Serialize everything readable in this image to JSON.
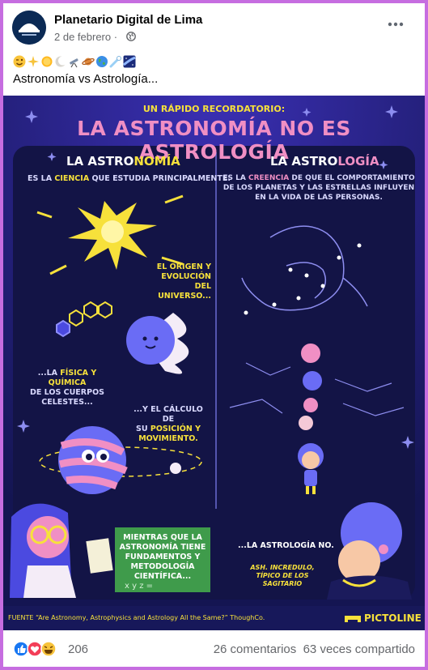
{
  "post": {
    "page_name": "Planetario Digital de Lima",
    "date": "2 de febrero",
    "date_separator": "·",
    "emojis": [
      "wink-face",
      "sparkles",
      "sun",
      "crescent-moon",
      "telescope",
      "ringed-planet",
      "earth-globe",
      "comet",
      "milky-way"
    ],
    "caption": "Astronomía vs Astrología..."
  },
  "infographic": {
    "kicker": "UN RÁPIDO RECORDATORIO:",
    "title": "LA ASTRONOMÍA NO ES ASTROLOGÍA",
    "left": {
      "heading_plain": "LA ASTRO",
      "heading_accent": "NOMÍA",
      "intro_a": "ES LA",
      "intro_accent": "CIENCIA",
      "intro_b": "QUE ESTUDIA PRINCIPALMENTE:",
      "origin_line1": "EL ORIGEN Y",
      "origin_line2": "EVOLUCIÓN DEL",
      "origin_line3": "UNIVERSO...",
      "physics_a": "...LA",
      "physics_accent1": "FÍSICA",
      "physics_b": "Y",
      "physics_accent2": "QUÍMICA",
      "physics_line2": "DE LOS CUERPOS",
      "physics_line3": "CELESTES...",
      "calc_line1": "...Y EL CÁLCULO DE",
      "calc_line2_a": "SU",
      "calc_line2_accent": "POSICIÓN",
      "calc_line2_b": "Y",
      "calc_line3": "MOVIMIENTO."
    },
    "right": {
      "heading_plain": "LA ASTRO",
      "heading_accent": "LOGÍA",
      "intro_a": "ES LA",
      "intro_accent": "CREENCIA",
      "intro_b": "DE QUE EL COMPORTAMIENTO",
      "intro_line2": "DE LOS PLANETAS Y LAS ESTRELLAS INFLUYEN",
      "intro_line3": "EN LA VIDA DE LAS PERSONAS."
    },
    "board_line1": "MIENTRAS QUE LA",
    "board_line2": "ASTRONOMÍA TIENE",
    "board_line3": "FUNDAMENTOS Y",
    "board_line4": "METODOLOGÍA",
    "board_line5": "CIENTÍFICA...",
    "astrology_no": "...LA ASTROLOGÍA NO.",
    "remark_line1": "ASH. INCREDULO,",
    "remark_line2": "TÍPICO DE LOS",
    "remark_line3": "SAGITARIO",
    "source": "FUENTE “Are Astronomy, Astrophysics and Astrology All the Same?” ThoughCo.",
    "brand": "PICTOLINE",
    "colors": {
      "background": "#17185a",
      "yellow": "#f7e13b",
      "pink": "#f08fc4",
      "board": "#3f9b4b",
      "accent": "#4b4ae0"
    }
  },
  "footer": {
    "reactions": [
      "like-icon",
      "love-icon",
      "haha-icon"
    ],
    "reaction_count": "206",
    "comments": "26 comentarios",
    "shares": "63 veces compartido"
  }
}
